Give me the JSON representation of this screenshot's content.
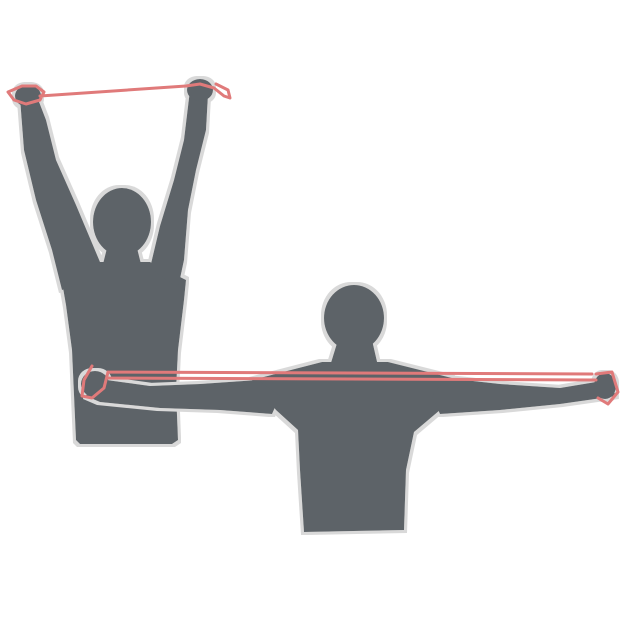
{
  "illustration": {
    "subject": "resistance-band-exercise",
    "figures": [
      {
        "id": "overhead-pull",
        "pose": "arms-raised-overhead"
      },
      {
        "id": "lateral-pull",
        "pose": "arms-extended-sideways"
      }
    ]
  },
  "colors": {
    "background": "#ffffff",
    "silhouette": "#5d6468",
    "outline": "#d9d9d9",
    "band": "#e07a7a"
  }
}
